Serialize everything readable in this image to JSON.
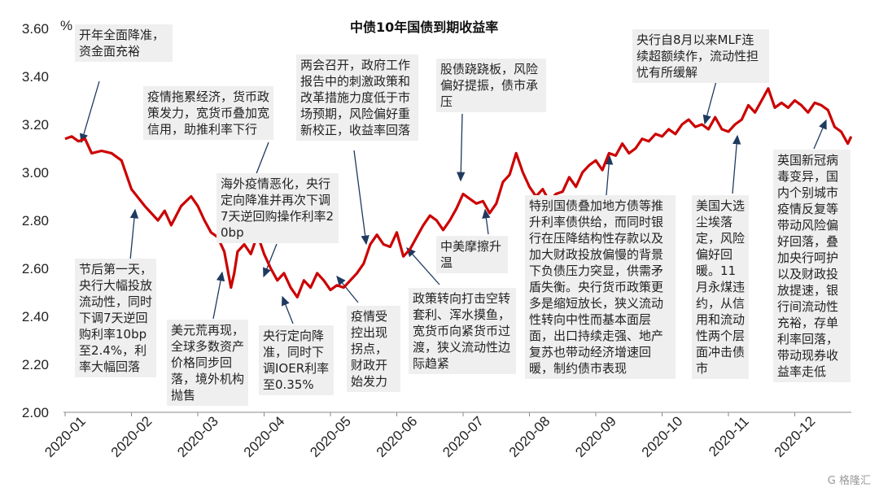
{
  "chart_data": {
    "type": "line",
    "title": "中债10年国债到期收益率",
    "ylabel": "%",
    "ylim": [
      2.0,
      3.6
    ],
    "yticks": [
      "2.00",
      "2.20",
      "2.40",
      "2.60",
      "2.80",
      "3.00",
      "3.20",
      "3.40",
      "3.60"
    ],
    "categories": [
      "2020-01",
      "2020-02",
      "2020-03",
      "2020-04",
      "2020-05",
      "2020-06",
      "2020-07",
      "2020-08",
      "2020-09",
      "2020-10",
      "2020-11",
      "2020-12"
    ],
    "series": [
      {
        "color": "#cc0000",
        "x": [
          0.0,
          0.1,
          0.2,
          0.3,
          0.4,
          0.55,
          0.7,
          0.85,
          1.0,
          1.2,
          1.4,
          1.5,
          1.6,
          1.75,
          1.9,
          2.0,
          2.1,
          2.2,
          2.3,
          2.4,
          2.5,
          2.55,
          2.6,
          2.7,
          2.8,
          2.9,
          3.0,
          3.1,
          3.2,
          3.3,
          3.4,
          3.5,
          3.6,
          3.7,
          3.8,
          3.9,
          4.0,
          4.1,
          4.2,
          4.3,
          4.4,
          4.5,
          4.6,
          4.7,
          4.8,
          4.9,
          5.0,
          5.1,
          5.2,
          5.3,
          5.4,
          5.5,
          5.6,
          5.7,
          5.8,
          5.9,
          6.0,
          6.1,
          6.2,
          6.3,
          6.4,
          6.5,
          6.6,
          6.7,
          6.8,
          6.9,
          7.0,
          7.1,
          7.2,
          7.3,
          7.4,
          7.5,
          7.6,
          7.7,
          7.8,
          7.9,
          8.0,
          8.1,
          8.2,
          8.3,
          8.4,
          8.5,
          8.6,
          8.7,
          8.8,
          8.9,
          9.0,
          9.1,
          9.2,
          9.3,
          9.4,
          9.5,
          9.6,
          9.7,
          9.8,
          9.9,
          10.0,
          10.1,
          10.2,
          10.3,
          10.4,
          10.5,
          10.6,
          10.7,
          10.8,
          10.9,
          11.0,
          11.1,
          11.2,
          11.3,
          11.4,
          11.5,
          11.6,
          11.7,
          11.8,
          11.85
        ],
        "values": [
          3.14,
          3.15,
          3.13,
          3.14,
          3.08,
          3.09,
          3.08,
          3.05,
          2.93,
          2.86,
          2.8,
          2.84,
          2.78,
          2.86,
          2.9,
          2.86,
          2.8,
          2.75,
          2.73,
          2.67,
          2.52,
          2.58,
          2.67,
          2.7,
          2.66,
          2.74,
          2.66,
          2.6,
          2.55,
          2.58,
          2.52,
          2.48,
          2.55,
          2.52,
          2.58,
          2.55,
          2.51,
          2.53,
          2.52,
          2.55,
          2.58,
          2.62,
          2.7,
          2.74,
          2.7,
          2.69,
          2.75,
          2.65,
          2.68,
          2.73,
          2.78,
          2.82,
          2.8,
          2.76,
          2.8,
          2.85,
          2.91,
          2.89,
          2.87,
          2.88,
          2.83,
          2.87,
          2.96,
          2.99,
          3.08,
          3.0,
          2.94,
          2.9,
          2.93,
          2.88,
          2.91,
          2.92,
          2.98,
          2.94,
          3.0,
          3.03,
          3.05,
          3.01,
          3.08,
          3.07,
          3.12,
          3.08,
          3.1,
          3.14,
          3.13,
          3.16,
          3.15,
          3.18,
          3.16,
          3.2,
          3.22,
          3.19,
          3.2,
          3.18,
          3.23,
          3.18,
          3.17,
          3.2,
          3.22,
          3.28,
          3.25,
          3.3,
          3.35,
          3.27,
          3.29,
          3.27,
          3.3,
          3.28,
          3.25,
          3.29,
          3.28,
          3.26,
          3.19,
          3.17,
          3.12,
          3.15
        ]
      }
    ]
  },
  "annotations": [
    {
      "id": "a1",
      "text": "开年全面降准，资金面充裕"
    },
    {
      "id": "a2",
      "text": "疫情拖累经济，货币政策发力，宽货币叠加宽信用，助推利率下行"
    },
    {
      "id": "a3",
      "text": "海外疫情恶化，央行定向降准并再次下调7天逆回购操作利率20bp"
    },
    {
      "id": "a4",
      "text": "两会召开，政府工作报告中的刺激政策和改革措施力度低于市场预期，风险偏好重新校正，收益率回落"
    },
    {
      "id": "a5",
      "text": "股债跷跷板，风险偏好提振，债市承压"
    },
    {
      "id": "a6",
      "text": "央行自8月以来MLF连续超额续作，流动性担忧有所缓解"
    },
    {
      "id": "a7",
      "text": "节后第一天，央行大幅投放流动性，同时下调7天逆回购利率10bp至2.4%，利率大幅回落"
    },
    {
      "id": "a8",
      "text": "美元荒再现，全球多数资产价格同步回落，境外机构抛售"
    },
    {
      "id": "a9",
      "text": "央行定向降准，同时下调IOER利率至0.35%"
    },
    {
      "id": "a10",
      "text": "疫情受控出现拐点，财政开始发力"
    },
    {
      "id": "a11",
      "text": "政策转向打击空转套利、浑水摸鱼，宽货币向紧货币过渡，狭义流动性边际趋紧"
    },
    {
      "id": "a12",
      "text": "中美摩擦升温"
    },
    {
      "id": "a13",
      "text": "特别国债叠加地方债等推升利率债供给，而同时银行在压降结构性存款以及加大财政投放偏慢的背景下负债压力突显，供需矛盾失衡。央行货币政策更多是缩短放长，狭义流动性转向中性而基本面层面，出口持续走强、地产复苏也带动经济增速回暖，制约债市表现"
    },
    {
      "id": "a14",
      "text": "美国大选尘埃落定，风险偏好回暖。11月永煤违约，从信用和流动性两个层面冲击债市"
    },
    {
      "id": "a15",
      "text": "英国新冠病毒变异，国内个别城市疫情反复等带动风险偏好回落，叠加央行呵护以及财政投放提速，银行间流动性充裕，存单利率回落，带动现券收益率走低"
    }
  ],
  "watermark": "G 格隆汇"
}
